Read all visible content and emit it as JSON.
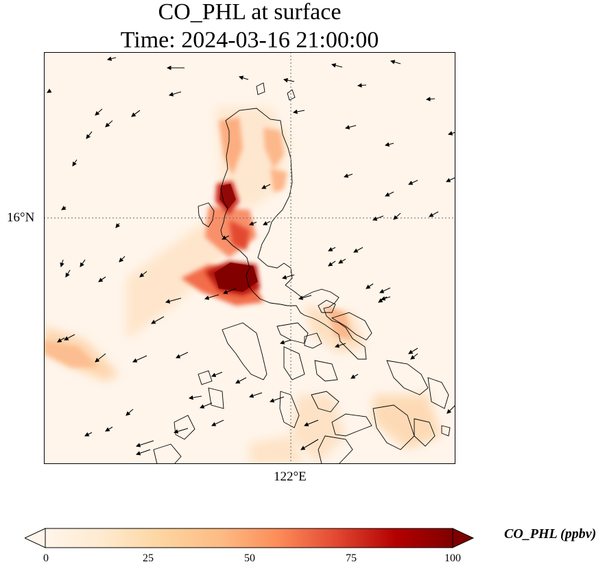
{
  "figure": {
    "title_line1": "CO_PHL at surface",
    "title_line2": "Time: 2024-03-16 21:00:00",
    "lat_tick": "16°N",
    "lon_tick": "122°E"
  },
  "colorbar": {
    "label": "CO_PHL (ppbv)",
    "ticks": [
      "0",
      "25",
      "50",
      "75",
      "100"
    ],
    "colors": [
      "#fff5eb",
      "#fdd49e",
      "#fdbb84",
      "#fc8d59",
      "#ef6548",
      "#d7301f",
      "#b30000",
      "#7f0000"
    ],
    "extend": "both"
  },
  "map": {
    "region": "Luzon, Philippines",
    "gridlines": "dotted",
    "features": [
      "coastlines",
      "wind-vectors",
      "concentration-field"
    ]
  }
}
